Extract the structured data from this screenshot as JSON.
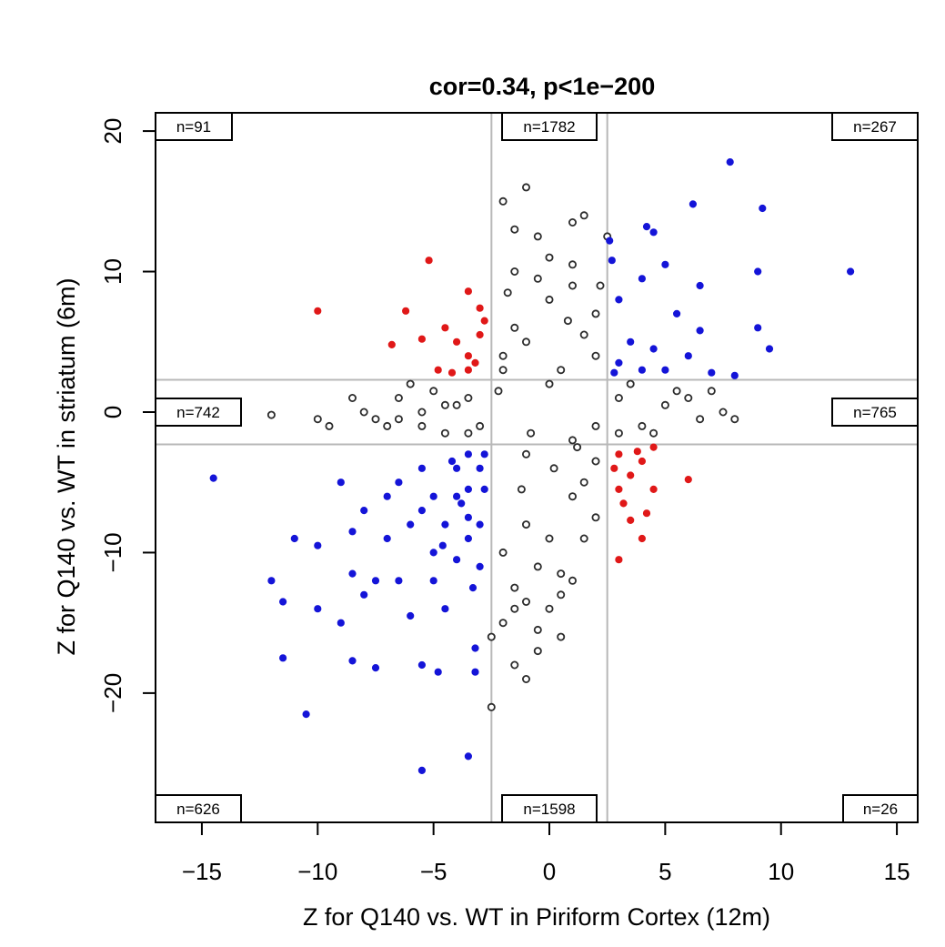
{
  "chart_data": {
    "type": "scatter",
    "title": "cor=0.34, p<1e−200",
    "xlabel": "Z for Q140 vs. WT in Piriform Cortex (12m)",
    "ylabel": "Z for Q140 vs. WT in striatum (6m)",
    "xlim": [
      -17,
      15.9
    ],
    "ylim": [
      -29.2,
      21.3
    ],
    "x_ticks": [
      -15,
      -10,
      -5,
      0,
      5,
      10,
      15
    ],
    "x_tick_labels": [
      "−15",
      "−10",
      "−5",
      "0",
      "5",
      "10",
      "15"
    ],
    "y_ticks": [
      20,
      10,
      0,
      -10,
      -20
    ],
    "y_tick_labels": [
      "20",
      "10",
      "0",
      "−10",
      "−20"
    ],
    "thresholds": {
      "x": [
        -2.5,
        2.5
      ],
      "y": [
        -2.3,
        2.3
      ]
    },
    "threshold_color": "#b8b8b8",
    "region_counts": [
      {
        "label": "n=91",
        "pos": "top-left"
      },
      {
        "label": "n=1782",
        "pos": "top-center"
      },
      {
        "label": "n=267",
        "pos": "top-right"
      },
      {
        "label": "n=742",
        "pos": "middle-left"
      },
      {
        "label": "n=765",
        "pos": "middle-right"
      },
      {
        "label": "n=626",
        "pos": "bottom-left"
      },
      {
        "label": "n=1598",
        "pos": "bottom-center"
      },
      {
        "label": "n=26",
        "pos": "bottom-right"
      }
    ],
    "series": [
      {
        "color": "#2b2b2b",
        "style": "open",
        "points": [
          [
            -2,
            15
          ],
          [
            -1,
            16
          ],
          [
            -1.5,
            13
          ],
          [
            -0.5,
            12.5
          ],
          [
            1,
            13.5
          ],
          [
            1.5,
            14
          ],
          [
            2.5,
            12.5
          ],
          [
            0,
            11
          ],
          [
            -1.5,
            10
          ],
          [
            1,
            10.5
          ],
          [
            -12,
            -0.2
          ],
          [
            -10,
            -0.5
          ],
          [
            -9.5,
            -1
          ],
          [
            -8.5,
            1
          ],
          [
            -8,
            0
          ],
          [
            -7.5,
            -0.5
          ],
          [
            -7,
            -1
          ],
          [
            -6.5,
            1
          ],
          [
            -6,
            2
          ],
          [
            -5.5,
            0
          ],
          [
            -5,
            1.5
          ],
          [
            -4.5,
            -1.5
          ],
          [
            -4,
            0.5
          ],
          [
            -3.5,
            1
          ],
          [
            -3,
            -1
          ],
          [
            -2,
            3
          ],
          [
            -1,
            -3
          ],
          [
            0,
            2
          ],
          [
            1,
            -2
          ],
          [
            2,
            4
          ],
          [
            3,
            1
          ],
          [
            4,
            -1
          ],
          [
            5,
            0.5
          ],
          [
            6,
            1
          ],
          [
            6.5,
            -0.5
          ],
          [
            7,
            1.5
          ],
          [
            7.5,
            0
          ],
          [
            8,
            -0.5
          ],
          [
            -2,
            -15
          ],
          [
            -1.5,
            -18
          ],
          [
            -1,
            -19
          ],
          [
            -0.5,
            -17
          ],
          [
            0,
            -14
          ],
          [
            0.5,
            -13
          ],
          [
            1,
            -12
          ],
          [
            -2.5,
            -21
          ],
          [
            -2.5,
            -16
          ],
          [
            -1.5,
            -14
          ],
          [
            -0.5,
            -15.5
          ],
          [
            0.5,
            -11.5
          ],
          [
            1.5,
            -9
          ],
          [
            2,
            -7.5
          ],
          [
            1,
            -6
          ],
          [
            -1,
            -8
          ],
          [
            -2,
            -10
          ],
          [
            0,
            -9
          ],
          [
            2,
            -3.5
          ],
          [
            1.5,
            -5
          ],
          [
            -0.5,
            -11
          ],
          [
            -1.5,
            -12.5
          ],
          [
            -1,
            -13.5
          ],
          [
            0.5,
            -16
          ],
          [
            -1.5,
            6
          ],
          [
            0,
            8
          ],
          [
            1,
            9
          ],
          [
            2,
            7
          ],
          [
            -2,
            4
          ],
          [
            -1,
            5
          ],
          [
            0.5,
            3
          ],
          [
            1.5,
            5.5
          ],
          [
            2.2,
            9
          ],
          [
            -1.8,
            8.5
          ],
          [
            -0.5,
            9.5
          ],
          [
            0.8,
            6.5
          ],
          [
            -2.2,
            1.5
          ],
          [
            -0.8,
            -1.5
          ],
          [
            0.2,
            -4
          ],
          [
            1.2,
            -2.5
          ],
          [
            -1.2,
            -5.5
          ],
          [
            2,
            -1
          ],
          [
            3.5,
            2
          ],
          [
            4.5,
            -1.5
          ],
          [
            5.5,
            1.5
          ],
          [
            3,
            -1.5
          ],
          [
            -3.5,
            -1.5
          ],
          [
            -4.5,
            0.5
          ],
          [
            -5.5,
            -1
          ],
          [
            -6.5,
            -0.5
          ]
        ]
      },
      {
        "color": "#e01818",
        "style": "filled",
        "points": [
          [
            -10,
            7.2
          ],
          [
            -6.2,
            7.2
          ],
          [
            -6.8,
            4.8
          ],
          [
            -5.2,
            10.8
          ],
          [
            -3.5,
            8.6
          ],
          [
            -3,
            7.4
          ],
          [
            -4.5,
            6
          ],
          [
            -4,
            5
          ],
          [
            -3.5,
            4
          ],
          [
            -4.8,
            3
          ],
          [
            -3.2,
            3.5
          ],
          [
            -4.2,
            2.8
          ],
          [
            -3,
            5.5
          ],
          [
            -3.5,
            3
          ],
          [
            -5.5,
            5.2
          ],
          [
            -2.8,
            6.5
          ],
          [
            3,
            -3
          ],
          [
            3.5,
            -4.5
          ],
          [
            4,
            -3.5
          ],
          [
            3.2,
            -6.5
          ],
          [
            3.5,
            -7.7
          ],
          [
            4.2,
            -7.2
          ],
          [
            4.5,
            -5.5
          ],
          [
            4,
            -9
          ],
          [
            3,
            -10.5
          ],
          [
            6,
            -4.8
          ],
          [
            3.8,
            -2.8
          ],
          [
            2.8,
            -4
          ],
          [
            3,
            -5.5
          ],
          [
            4.5,
            -2.5
          ]
        ]
      },
      {
        "color": "#1414d8",
        "style": "filled",
        "points": [
          [
            7.8,
            17.8
          ],
          [
            9.2,
            14.5
          ],
          [
            6.2,
            14.8
          ],
          [
            4.2,
            13.2
          ],
          [
            4.5,
            12.8
          ],
          [
            2.6,
            12.2
          ],
          [
            2.7,
            10.8
          ],
          [
            5,
            10.5
          ],
          [
            9,
            10
          ],
          [
            13,
            10
          ],
          [
            6.5,
            9
          ],
          [
            4,
            9.5
          ],
          [
            3,
            8
          ],
          [
            5.5,
            7
          ],
          [
            6.5,
            5.8
          ],
          [
            3.5,
            5
          ],
          [
            4.5,
            4.5
          ],
          [
            6,
            4
          ],
          [
            9,
            6
          ],
          [
            9.5,
            4.5
          ],
          [
            3,
            3.5
          ],
          [
            4,
            3
          ],
          [
            5,
            3
          ],
          [
            7,
            2.8
          ],
          [
            8,
            2.6
          ],
          [
            2.8,
            2.8
          ],
          [
            -14.5,
            -4.7
          ],
          [
            -12,
            -12
          ],
          [
            -11.5,
            -13.5
          ],
          [
            -11.5,
            -17.5
          ],
          [
            -11,
            -9
          ],
          [
            -10.5,
            -21.5
          ],
          [
            -10,
            -14
          ],
          [
            -10,
            -9.5
          ],
          [
            -9,
            -15
          ],
          [
            -9,
            -5
          ],
          [
            -8.5,
            -8.5
          ],
          [
            -8.5,
            -11.5
          ],
          [
            -8.5,
            -17.7
          ],
          [
            -8,
            -13
          ],
          [
            -8,
            -7
          ],
          [
            -7.5,
            -12
          ],
          [
            -7.5,
            -18.2
          ],
          [
            -7,
            -6
          ],
          [
            -7,
            -9
          ],
          [
            -6.5,
            -5
          ],
          [
            -6.5,
            -12
          ],
          [
            -6,
            -8
          ],
          [
            -6,
            -14.5
          ],
          [
            -5.5,
            -4
          ],
          [
            -5.5,
            -7
          ],
          [
            -5.5,
            -18
          ],
          [
            -5,
            -6
          ],
          [
            -5,
            -10
          ],
          [
            -5,
            -12
          ],
          [
            -4.8,
            -18.5
          ],
          [
            -4.5,
            -14
          ],
          [
            -4.5,
            -8
          ],
          [
            -4,
            -4
          ],
          [
            -4,
            -6
          ],
          [
            -4,
            -10.5
          ],
          [
            -3.5,
            -3
          ],
          [
            -3.5,
            -5.5
          ],
          [
            -3.5,
            -7.5
          ],
          [
            -3.5,
            -9
          ],
          [
            -3.5,
            -24.5
          ],
          [
            -3.2,
            -16.8
          ],
          [
            -3,
            -4
          ],
          [
            -3,
            -8
          ],
          [
            -3,
            -11
          ],
          [
            -3.2,
            -18.5
          ],
          [
            -5.5,
            -25.5
          ],
          [
            -3.8,
            -6.5
          ],
          [
            -4.2,
            -3.5
          ],
          [
            -3.3,
            -12.5
          ],
          [
            -4.6,
            -9.5
          ],
          [
            -2.8,
            -5.5
          ],
          [
            -2.8,
            -3
          ]
        ]
      }
    ]
  }
}
